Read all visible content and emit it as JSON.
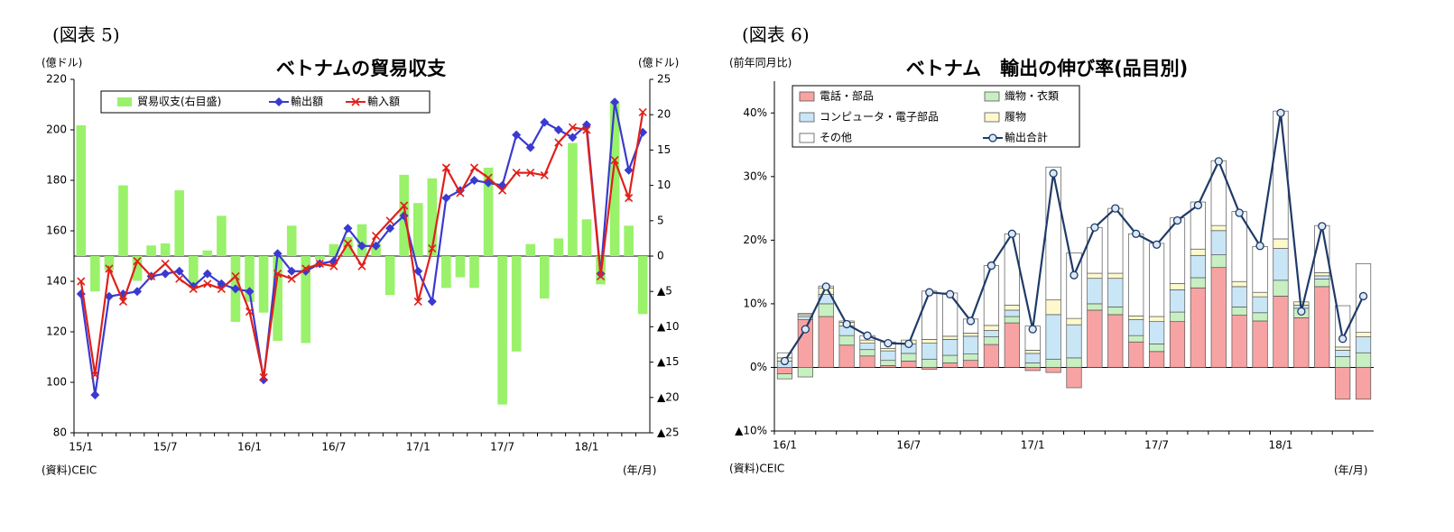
{
  "chart_data": [
    {
      "type": "combo",
      "figure_label": "(図表 5)",
      "title": "ベトナムの貿易収支",
      "y_label": "(億ドル)",
      "y2_label": "(億ドル)",
      "source": "(資料)CEIC",
      "x_unit": "(年/月)",
      "categories": [
        "15/1",
        null,
        null,
        null,
        null,
        null,
        "15/7",
        null,
        null,
        null,
        null,
        null,
        "16/1",
        null,
        null,
        null,
        null,
        null,
        "16/7",
        null,
        null,
        null,
        null,
        null,
        "17/1",
        null,
        null,
        null,
        null,
        null,
        "17/7",
        null,
        null,
        null,
        null,
        null,
        "18/1",
        null,
        null,
        null,
        null
      ],
      "ylim": [
        80,
        220
      ],
      "yticks": [
        80,
        100,
        120,
        140,
        160,
        180,
        200,
        220
      ],
      "y2lim": [
        -25,
        25
      ],
      "y2ticks": [
        {
          "value": -25,
          "label": "▲25"
        },
        {
          "value": -20,
          "label": "▲20"
        },
        {
          "value": -15,
          "label": "▲15"
        },
        {
          "value": -10,
          "label": "▲10"
        },
        {
          "value": -5,
          "label": "▲5"
        },
        0,
        5,
        10,
        15,
        20,
        25
      ],
      "series": [
        {
          "name": "貿易収支(右目盛)",
          "type": "bar",
          "axis": "y2",
          "color": "#99f26a",
          "values": [
            18.5,
            -5,
            -2,
            10,
            -3.5,
            1.5,
            1.8,
            9.3,
            -4.5,
            0.8,
            5.7,
            -9.3,
            -6.5,
            -8,
            -12,
            4.3,
            -12.3,
            -0.5,
            1.7,
            2.7,
            4.5,
            1.8,
            -5.5,
            11.5,
            7.5,
            11,
            -4.5,
            -3,
            -4.5,
            12.5,
            -21,
            -13.5,
            1.7,
            -6,
            2.5,
            16,
            5.2,
            -4,
            21.8,
            4.3,
            -8.2
          ]
        },
        {
          "name": "輸出額",
          "type": "line",
          "color": "#3a3ad0",
          "marker": "diamond",
          "values": [
            135,
            95,
            134,
            135,
            136,
            142,
            143,
            144,
            138,
            143,
            139,
            137,
            136,
            101,
            151,
            144,
            144,
            147,
            148,
            161,
            154,
            154,
            161,
            166,
            144,
            132,
            173,
            176,
            180,
            179,
            178,
            198,
            193,
            203,
            200,
            197,
            202,
            143,
            211,
            184,
            199
          ]
        },
        {
          "name": "輸入額",
          "type": "line",
          "color": "#e0201a",
          "marker": "x",
          "values": [
            140,
            103,
            145,
            132,
            148,
            142,
            147,
            141,
            137,
            139,
            137,
            142,
            128,
            102,
            143,
            141,
            145,
            147,
            146,
            155,
            146,
            158,
            164,
            170,
            132,
            153,
            185,
            175,
            185,
            181,
            176,
            183,
            183,
            182,
            195,
            201,
            200,
            142,
            188,
            173,
            207
          ]
        }
      ]
    },
    {
      "type": "combo",
      "figure_label": "(図表 6)",
      "title": "ベトナム　輸出の伸び率(品目別)",
      "y_label": "(前年同月比)",
      "source": "(資料)CEIC",
      "x_unit": "(年/月)",
      "categories": [
        "16/1",
        null,
        null,
        null,
        null,
        null,
        "16/7",
        null,
        null,
        null,
        null,
        null,
        "17/1",
        null,
        null,
        null,
        null,
        null,
        "17/7",
        null,
        null,
        null,
        null,
        null,
        "18/1",
        null,
        null,
        null,
        null
      ],
      "ylim": [
        -10,
        45
      ],
      "yticks": [
        {
          "value": -10,
          "label": "▲10%"
        },
        {
          "value": 0,
          "label": "0%"
        },
        {
          "value": 10,
          "label": "10%"
        },
        {
          "value": 20,
          "label": "20%"
        },
        {
          "value": 30,
          "label": "30%"
        },
        {
          "value": 40,
          "label": "40%"
        }
      ],
      "bar_outline": "#555555",
      "series": [
        {
          "name": "電話・部品",
          "type": "bar",
          "color": "#f7a3a3",
          "values": [
            -1,
            7.5,
            8,
            3.5,
            1.8,
            0.3,
            1,
            -0.3,
            0.7,
            1.1,
            3.6,
            7,
            -0.5,
            -0.8,
            -3.2,
            9,
            8.3,
            4,
            2.5,
            7.2,
            12.5,
            15.7,
            8.2,
            7.3,
            11.2,
            7.8,
            12.7,
            -5,
            -5
          ]
        },
        {
          "name": "織物・衣類",
          "type": "bar",
          "color": "#c8efc2",
          "values": [
            -0.8,
            -1.5,
            2,
            1.5,
            1,
            0.8,
            1.2,
            1.3,
            1.2,
            1,
            1.2,
            1,
            0.7,
            1.3,
            1.5,
            1,
            1.2,
            1,
            1.2,
            1.5,
            1.6,
            2,
            1.3,
            1.3,
            2.5,
            1.5,
            1.2,
            1.7,
            2.3
          ]
        },
        {
          "name": "コンピュータ・電子部品",
          "type": "bar",
          "color": "#c9e6f7",
          "values": [
            1,
            0.5,
            1.5,
            1.5,
            1,
            1.5,
            1.5,
            2.5,
            2.5,
            2.8,
            1,
            1,
            1.5,
            7,
            5.2,
            4,
            4.5,
            2.5,
            3.5,
            3.5,
            3.5,
            3.8,
            3.2,
            2.5,
            5,
            0.5,
            0.5,
            1,
            2.5
          ]
        },
        {
          "name": "履物",
          "type": "bar",
          "color": "#fdf9cc",
          "values": [
            0.5,
            0.3,
            1,
            0.6,
            0.5,
            0.4,
            0.6,
            0.6,
            0.5,
            0.5,
            0.8,
            0.8,
            0.5,
            2.3,
            1,
            0.8,
            0.8,
            0.6,
            0.8,
            1,
            1,
            0.8,
            0.8,
            0.7,
            1.5,
            0.5,
            0.5,
            0.5,
            0.7
          ]
        },
        {
          "name": "その他",
          "type": "bar",
          "color": "#ffffff",
          "values": [
            0.8,
            0.2,
            0.3,
            0.2,
            0.7,
            1,
            0,
            7.6,
            6.8,
            2.2,
            9.4,
            11.2,
            3.8,
            20.9,
            10.3,
            7.2,
            10.2,
            12.9,
            11.5,
            10.3,
            7.4,
            10.2,
            11,
            7.2,
            20.1,
            0,
            7.4,
            6.5,
            10.8
          ]
        },
        {
          "name": "輸出合計",
          "type": "line",
          "color": "#1f3a68",
          "marker": "circle",
          "marker_fill": "#dce9f5",
          "values": [
            1,
            6,
            12.7,
            6.8,
            5,
            3.8,
            3.7,
            11.8,
            11.5,
            7.3,
            16,
            21,
            6,
            30.5,
            14.5,
            22,
            25,
            21,
            19.3,
            23.1,
            25.5,
            32.4,
            24.3,
            19.1,
            40,
            8.8,
            22.2,
            4.5,
            11.2
          ]
        }
      ]
    }
  ]
}
